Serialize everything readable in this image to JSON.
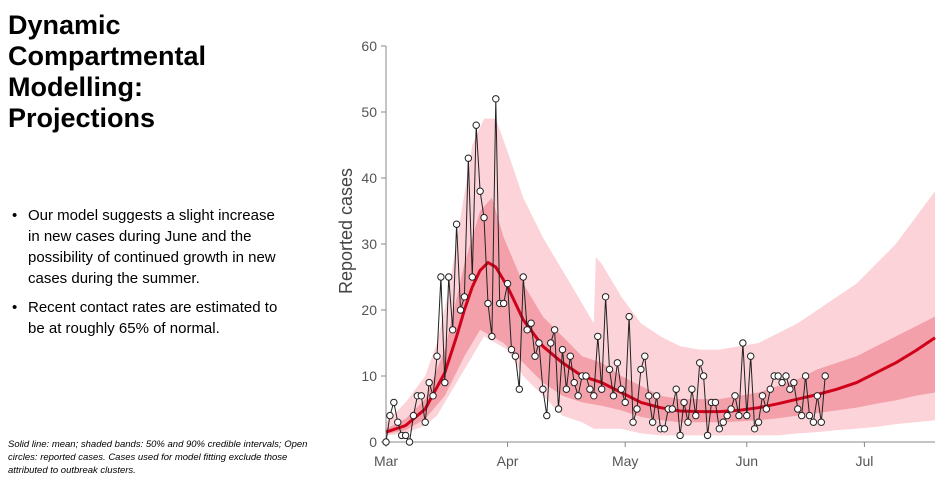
{
  "title_lines": [
    "Dynamic",
    "Compartmental",
    "Modelling:",
    "Projections"
  ],
  "bullets": [
    "Our model suggests a slight increase in new cases during June and the possibility of continued growth in new cases during the summer.",
    "Recent contact rates are estimated to be at roughly 65% of normal."
  ],
  "bullet_glyph": "•",
  "footnote": "Solid line: mean; shaded bands: 50% and 90% credible intervals; Open circles: reported cases. Cases used for model fitting exclude those attributed to outbreak clusters.",
  "chart_data": {
    "type": "line",
    "title": "",
    "xlabel": "",
    "ylabel": "Reported cases",
    "ylim": [
      0,
      60
    ],
    "yticks": [
      0,
      10,
      20,
      30,
      40,
      50,
      60
    ],
    "x_unit": "days since Mar 1",
    "xlim": [
      0,
      140
    ],
    "xticks": [
      {
        "label": "Mar",
        "day": 0
      },
      {
        "label": "Apr",
        "day": 31
      },
      {
        "label": "May",
        "day": 61
      },
      {
        "label": "Jun",
        "day": 92
      },
      {
        "label": "Jul",
        "day": 122
      }
    ],
    "colors": {
      "mean": "#d0021b",
      "band50": "#f3a0aa",
      "band90": "#fcd3d8",
      "observed": "#222222"
    },
    "series": [
      {
        "name": "Reported cases",
        "style": "open-circles",
        "points": [
          [
            0,
            0
          ],
          [
            1,
            4
          ],
          [
            2,
            6
          ],
          [
            3,
            3
          ],
          [
            4,
            1
          ],
          [
            5,
            1
          ],
          [
            6,
            0
          ],
          [
            7,
            4
          ],
          [
            8,
            7
          ],
          [
            9,
            7
          ],
          [
            10,
            3
          ],
          [
            11,
            9
          ],
          [
            12,
            7
          ],
          [
            13,
            13
          ],
          [
            14,
            25
          ],
          [
            15,
            9
          ],
          [
            16,
            25
          ],
          [
            17,
            17
          ],
          [
            18,
            33
          ],
          [
            19,
            20
          ],
          [
            20,
            22
          ],
          [
            21,
            43
          ],
          [
            22,
            25
          ],
          [
            23,
            48
          ],
          [
            24,
            38
          ],
          [
            25,
            34
          ],
          [
            26,
            21
          ],
          [
            27,
            16
          ],
          [
            28,
            52
          ],
          [
            29,
            21
          ],
          [
            30,
            21
          ],
          [
            31,
            24
          ],
          [
            32,
            14
          ],
          [
            33,
            13
          ],
          [
            34,
            8
          ],
          [
            35,
            25
          ],
          [
            36,
            17
          ],
          [
            37,
            18
          ],
          [
            38,
            13
          ],
          [
            39,
            15
          ],
          [
            40,
            8
          ],
          [
            41,
            4
          ],
          [
            42,
            15
          ],
          [
            43,
            17
          ],
          [
            44,
            5
          ],
          [
            45,
            14
          ],
          [
            46,
            8
          ],
          [
            47,
            13
          ],
          [
            48,
            9
          ],
          [
            49,
            7
          ],
          [
            50,
            10
          ],
          [
            51,
            10
          ],
          [
            52,
            8
          ],
          [
            53,
            7
          ],
          [
            54,
            16
          ],
          [
            55,
            8
          ],
          [
            56,
            22
          ],
          [
            57,
            11
          ],
          [
            58,
            7
          ],
          [
            59,
            12
          ],
          [
            60,
            8
          ],
          [
            61,
            6
          ],
          [
            62,
            19
          ],
          [
            63,
            3
          ],
          [
            64,
            5
          ],
          [
            65,
            11
          ],
          [
            66,
            13
          ],
          [
            67,
            7
          ],
          [
            68,
            3
          ],
          [
            69,
            7
          ],
          [
            70,
            2
          ],
          [
            71,
            2
          ],
          [
            72,
            5
          ],
          [
            73,
            5
          ],
          [
            74,
            8
          ],
          [
            75,
            1
          ],
          [
            76,
            6
          ],
          [
            77,
            3
          ],
          [
            78,
            8
          ],
          [
            79,
            4
          ],
          [
            80,
            12
          ],
          [
            81,
            10
          ],
          [
            82,
            1
          ],
          [
            83,
            6
          ],
          [
            84,
            6
          ],
          [
            85,
            2
          ],
          [
            86,
            3
          ],
          [
            87,
            4
          ],
          [
            88,
            5
          ],
          [
            89,
            7
          ],
          [
            90,
            4
          ],
          [
            91,
            15
          ],
          [
            92,
            4
          ],
          [
            93,
            13
          ],
          [
            94,
            2
          ],
          [
            95,
            3
          ],
          [
            96,
            7
          ],
          [
            97,
            5
          ],
          [
            98,
            8
          ],
          [
            99,
            10
          ],
          [
            100,
            10
          ],
          [
            101,
            9
          ],
          [
            102,
            10
          ],
          [
            103,
            8
          ],
          [
            104,
            9
          ],
          [
            105,
            5
          ],
          [
            106,
            4
          ],
          [
            107,
            10
          ],
          [
            108,
            4
          ],
          [
            109,
            3
          ],
          [
            110,
            7
          ],
          [
            111,
            3
          ],
          [
            112,
            10
          ]
        ]
      },
      {
        "name": "Mean",
        "style": "line",
        "points": [
          [
            0,
            1.5
          ],
          [
            5,
            2.5
          ],
          [
            10,
            5
          ],
          [
            15,
            10.5
          ],
          [
            18,
            16
          ],
          [
            20,
            20
          ],
          [
            22,
            23.5
          ],
          [
            24,
            26
          ],
          [
            26,
            27.2
          ],
          [
            28,
            26.5
          ],
          [
            31,
            23.5
          ],
          [
            35,
            18.5
          ],
          [
            40,
            14.5
          ],
          [
            45,
            12
          ],
          [
            50,
            10
          ],
          [
            55,
            9
          ],
          [
            60,
            7.5
          ],
          [
            65,
            6
          ],
          [
            70,
            5.2
          ],
          [
            75,
            4.7
          ],
          [
            80,
            4.6
          ],
          [
            85,
            4.6
          ],
          [
            90,
            4.8
          ],
          [
            95,
            5.2
          ],
          [
            100,
            5.8
          ],
          [
            105,
            6.5
          ],
          [
            110,
            7.2
          ],
          [
            115,
            8
          ],
          [
            120,
            9
          ],
          [
            125,
            10.5
          ],
          [
            130,
            12
          ],
          [
            135,
            13.8
          ],
          [
            140,
            15.8
          ]
        ]
      }
    ],
    "bands": [
      {
        "name": "90% credible interval",
        "points": [
          [
            0,
            1,
            3
          ],
          [
            5,
            1.3,
            6
          ],
          [
            10,
            2.5,
            10
          ],
          [
            13,
            4,
            15
          ],
          [
            16,
            7,
            23
          ],
          [
            19,
            10,
            34
          ],
          [
            22,
            13,
            45
          ],
          [
            25,
            16,
            49
          ],
          [
            28,
            15,
            49
          ],
          [
            31,
            14,
            44
          ],
          [
            35,
            10,
            37
          ],
          [
            40,
            7,
            31
          ],
          [
            45,
            4,
            26
          ],
          [
            50,
            3,
            21
          ],
          [
            53,
            2,
            18
          ],
          [
            53.5,
            2,
            28
          ],
          [
            55,
            2,
            27
          ],
          [
            60,
            2,
            22
          ],
          [
            65,
            1.3,
            18
          ],
          [
            70,
            1,
            16
          ],
          [
            75,
            1,
            14.5
          ],
          [
            80,
            1,
            14
          ],
          [
            85,
            1,
            14
          ],
          [
            90,
            1,
            14.5
          ],
          [
            95,
            1,
            15
          ],
          [
            100,
            1,
            16.5
          ],
          [
            105,
            1.3,
            18
          ],
          [
            110,
            1.5,
            20
          ],
          [
            115,
            1.8,
            22
          ],
          [
            120,
            2,
            24
          ],
          [
            125,
            2.3,
            27
          ],
          [
            130,
            2.7,
            30
          ],
          [
            135,
            3,
            34
          ],
          [
            140,
            3.3,
            38
          ]
        ]
      },
      {
        "name": "50% credible interval",
        "points": [
          [
            0,
            1.2,
            2
          ],
          [
            5,
            1.8,
            3.5
          ],
          [
            10,
            3.5,
            6.5
          ],
          [
            15,
            7,
            14
          ],
          [
            20,
            13,
            27
          ],
          [
            24,
            17,
            35
          ],
          [
            27,
            16,
            37
          ],
          [
            30,
            15,
            31
          ],
          [
            35,
            12,
            24
          ],
          [
            40,
            9,
            19
          ],
          [
            45,
            7,
            16
          ],
          [
            50,
            6,
            13
          ],
          [
            55,
            5.5,
            12
          ],
          [
            60,
            4.8,
            10
          ],
          [
            65,
            3.8,
            8.5
          ],
          [
            70,
            3.3,
            7
          ],
          [
            75,
            3,
            6.5
          ],
          [
            80,
            3,
            6.5
          ],
          [
            85,
            3,
            6.5
          ],
          [
            90,
            3.1,
            7
          ],
          [
            95,
            3.3,
            7.5
          ],
          [
            100,
            3.6,
            8.5
          ],
          [
            105,
            4,
            9.5
          ],
          [
            110,
            4.4,
            11
          ],
          [
            115,
            4.8,
            12
          ],
          [
            120,
            5.2,
            13
          ],
          [
            125,
            5.8,
            14.5
          ],
          [
            130,
            6.3,
            16
          ],
          [
            135,
            7,
            17.5
          ],
          [
            140,
            7.5,
            19
          ]
        ]
      }
    ],
    "grid": false,
    "legend": "none"
  }
}
